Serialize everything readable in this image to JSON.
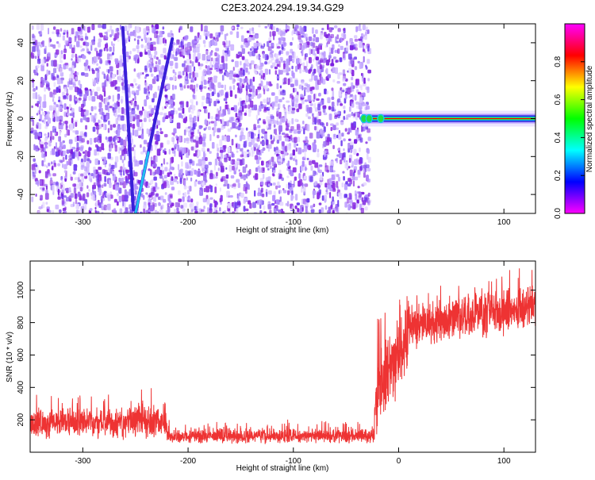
{
  "title": "C2E3.2024.294.19.34.G29",
  "chart_data": [
    {
      "type": "heatmap",
      "xlabel": "Height of straight line (km)",
      "ylabel": "Frequency (Hz)",
      "xlim": [
        -350,
        130
      ],
      "ylim": [
        -50,
        50
      ],
      "xticks": [
        -300,
        -200,
        -100,
        0,
        100
      ],
      "yticks": [
        -40,
        -20,
        0,
        20,
        40
      ],
      "colorbar": {
        "label": "Normalized spectral amplitude",
        "range": [
          0,
          1
        ],
        "ticks": [
          0.0,
          0.2,
          0.4,
          0.6,
          0.8
        ],
        "colormap": [
          "#ff00ff",
          "#ff0000",
          "#ffff00",
          "#00ff00",
          "#00ffff",
          "#0000ff",
          "#ff00ff"
        ]
      },
      "noise_region": {
        "x_from": -350,
        "x_to": -35,
        "color": "#8a2be2"
      },
      "signal_band": {
        "x_from": -35,
        "x_to": 130,
        "frequency": 0,
        "color": "#ff0000"
      },
      "streaks": [
        {
          "x_start": -262,
          "y_start": 48,
          "x_end": -252,
          "y_end": -48
        },
        {
          "x_start": -215,
          "y_start": 42,
          "x_end": -250,
          "y_end": -50
        }
      ]
    },
    {
      "type": "line",
      "xlabel": "Height of straight line (km)",
      "ylabel": "SNR (10 * v/v)",
      "xlim": [
        -350,
        130
      ],
      "ylim": [
        0,
        1180
      ],
      "xticks": [
        -300,
        -200,
        -100,
        0,
        100
      ],
      "yticks": [
        200,
        400,
        600,
        800,
        1000
      ],
      "color": "#ee3333",
      "segments": [
        {
          "x_from": -350,
          "x_to": -250,
          "mean": 180,
          "spread": 90
        },
        {
          "x_from": -250,
          "x_to": -220,
          "mean": 190,
          "spread": 110
        },
        {
          "x_from": -220,
          "x_to": -23,
          "mean": 100,
          "spread": 45
        },
        {
          "x_from": -23,
          "x_to": -20,
          "mean": 330,
          "spread": 200
        },
        {
          "x_from": -20,
          "x_to": 10,
          "mean": 520,
          "spread": 260
        },
        {
          "x_from": 10,
          "x_to": 130,
          "mean": 860,
          "spread": 130
        }
      ]
    }
  ]
}
